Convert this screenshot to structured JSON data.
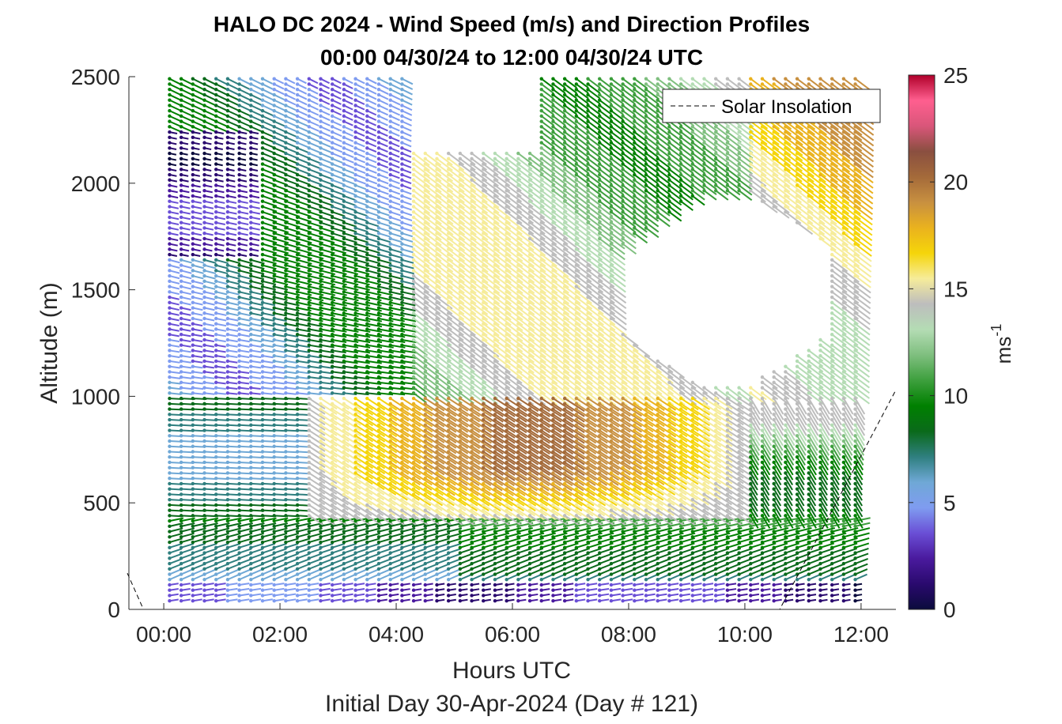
{
  "chart_data": {
    "type": "wind-barb-quiver",
    "title": "HALO DC 2024 - Wind Speed (m/s) and Direction Profiles",
    "subtitle": "00:00 04/30/24 to 12:00 04/30/24  UTC",
    "xlabel": "Hours UTC",
    "xlabel2": "Initial Day 30-Apr-2024 (Day # 121)",
    "ylabel": "Altitude (m)",
    "x_ticks": [
      "00:00",
      "02:00",
      "04:00",
      "06:00",
      "08:00",
      "10:00",
      "12:00"
    ],
    "x_tick_values_hours": [
      0,
      2,
      4,
      6,
      8,
      10,
      12
    ],
    "xlim_hours": [
      -0.6,
      12.6
    ],
    "y_ticks": [
      "0",
      "500",
      "1000",
      "1500",
      "2000",
      "2500"
    ],
    "ylim": [
      0,
      2500
    ],
    "colorbar": {
      "label": "ms",
      "label_superscript": "-1",
      "ticks": [
        "0",
        "5",
        "10",
        "15",
        "20",
        "25"
      ],
      "range": [
        0,
        25
      ],
      "colors": [
        "#0b0b3d",
        "#2a0a6e",
        "#4a1a9e",
        "#6a4fd6",
        "#7f9cf0",
        "#6fa8d6",
        "#2f7f7f",
        "#0a6a1a",
        "#008000",
        "#3d9f3d",
        "#7fbf7f",
        "#b4dcb4",
        "#bdbdbd",
        "#f6ec9a",
        "#f5d50a",
        "#eab21e",
        "#c89040",
        "#a46a3a",
        "#8a4f40",
        "#d9567a",
        "#ff5f8f",
        "#b0002a"
      ]
    },
    "legend": {
      "entries": [
        "Solar Insolation"
      ],
      "placement": "top-right",
      "line_style": "dashed",
      "color": "#000000"
    },
    "solar_insolation_curve": {
      "x_hours": [
        -0.7,
        -0.35,
        -0.3,
        10.6,
        12.6
      ],
      "y_altitude_m": [
        170,
        0,
        0,
        0,
        1030
      ]
    },
    "grid": false,
    "vector_field": {
      "x_start_hours": 0.1,
      "x_step_hours": 0.2,
      "x_end_hours": 12.0,
      "y_start_m": 40,
      "y_step_m": 25,
      "y_end_m": 2490,
      "speed_units": "m/s",
      "speed_regimes": [
        {
          "altitude_range_m": [
            0,
            130
          ],
          "hours": [
            0,
            12
          ],
          "speed": 4,
          "direction": "from west, slightly rising"
        },
        {
          "altitude_range_m": [
            130,
            400
          ],
          "hours": [
            0,
            12
          ],
          "speed": 8,
          "direction": "from west-southwest"
        },
        {
          "altitude_range_m": [
            400,
            1000
          ],
          "hours": [
            2.3,
            10
          ],
          "speed": 17,
          "direction": "from northwest"
        },
        {
          "altitude_range_m": [
            1000,
            2000
          ],
          "hours": [
            0,
            4
          ],
          "speed": 8,
          "direction": "from west"
        },
        {
          "altitude_range_m": [
            1000,
            2500
          ],
          "hours": [
            5,
            11
          ],
          "speed": 14,
          "direction": "from northwest"
        },
        {
          "altitude_range_m": [
            1700,
            2200
          ],
          "hours": [
            0,
            1.5
          ],
          "speed": 3,
          "direction": "from west"
        }
      ],
      "missing_region": {
        "altitude_range_m": [
          1050,
          1950
        ],
        "hours": [
          7.9,
          11.4
        ]
      }
    }
  }
}
